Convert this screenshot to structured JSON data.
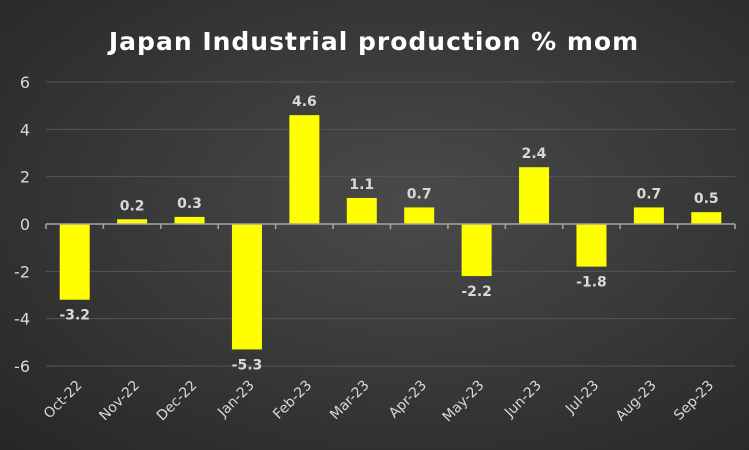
{
  "chart_data": {
    "type": "bar",
    "title": "Japan Industrial production % mom",
    "xlabel": "",
    "ylabel": "",
    "categories": [
      "Oct-22",
      "Nov-22",
      "Dec-22",
      "Jan-23",
      "Feb-23",
      "Mar-23",
      "Apr-23",
      "May-23",
      "Jun-23",
      "Jul-23",
      "Aug-23",
      "Sep-23"
    ],
    "values": [
      -3.2,
      0.2,
      0.3,
      -5.3,
      4.6,
      1.1,
      0.7,
      -2.2,
      2.4,
      -1.8,
      0.7,
      0.5
    ],
    "data_labels": [
      "-3.2",
      "0.2",
      "0.3",
      "-5.3",
      "4.6",
      "1.1",
      "0.7",
      "-2.2",
      "2.4",
      "-1.8",
      "0.7",
      "0.5"
    ],
    "ylim": [
      -6,
      6
    ],
    "yticks": [
      "-6",
      "-4",
      "-2",
      "0",
      "2",
      "4",
      "6"
    ],
    "grid": true,
    "legend": "none",
    "colors": {
      "bar": "#ffff00",
      "grid": "#555555",
      "axis": "#a6a6a6",
      "text": "#d9d9d9",
      "title": "#ffffff"
    }
  }
}
